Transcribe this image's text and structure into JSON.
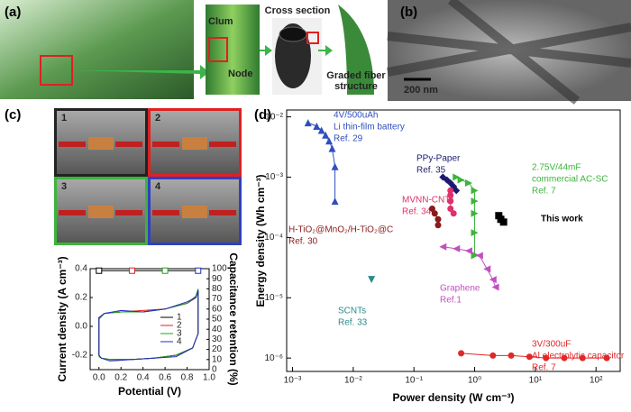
{
  "panels": {
    "a": {
      "label": "(a)",
      "clum": "Clum",
      "node": "Node",
      "cross": "Cross section",
      "graded": [
        "Graded fiber",
        "structure"
      ]
    },
    "b": {
      "label": "(b)",
      "scale": "200 nm"
    },
    "c": {
      "label": "(c)",
      "photos": [
        "1",
        "2",
        "3",
        "4"
      ]
    },
    "d": {
      "label": "(d)"
    }
  },
  "chart_data": [
    {
      "type": "line",
      "xlabel": "Potential (V)",
      "ylabel": "Current density (A cm⁻³)",
      "y2label": "Capacitance retention (%)",
      "xlim": [
        -0.08,
        1.0
      ],
      "xticks": [
        {
          "value": 0,
          "label": "0.0"
        },
        0.2,
        0.4,
        0.6,
        0.8,
        {
          "value": 1,
          "label": "1.0"
        }
      ],
      "ylim": [
        -0.3,
        0.4
      ],
      "yticks": [
        -0.2,
        {
          "value": 0,
          "label": "0.0"
        },
        0.2,
        0.4
      ],
      "y2lim": [
        0,
        100
      ],
      "y2ticks": [
        0,
        10,
        20,
        30,
        40,
        50,
        60,
        70,
        80,
        90,
        100
      ],
      "x": [
        0,
        0,
        0.05,
        0.2,
        0.4,
        0.6,
        0.8,
        0.88,
        0.9,
        0.9,
        0.85,
        0.7,
        0.5,
        0.3,
        0.1,
        0.02,
        0
      ],
      "series": [
        {
          "name": "1",
          "color": "#000000",
          "values": [
            -0.2,
            0.06,
            0.09,
            0.1,
            0.1,
            0.12,
            0.16,
            0.2,
            0.25,
            -0.05,
            -0.15,
            -0.2,
            -0.22,
            -0.23,
            -0.23,
            -0.22,
            -0.2
          ]
        },
        {
          "name": "2",
          "color": "#e02020",
          "values": [
            -0.2,
            0.06,
            0.09,
            0.1,
            0.11,
            0.12,
            0.16,
            0.2,
            0.25,
            -0.05,
            -0.15,
            -0.2,
            -0.22,
            -0.23,
            -0.23,
            -0.22,
            -0.2
          ]
        },
        {
          "name": "3",
          "color": "#20a020",
          "values": [
            -0.21,
            0.05,
            0.09,
            0.1,
            0.1,
            0.12,
            0.16,
            0.21,
            0.26,
            -0.05,
            -0.15,
            -0.2,
            -0.22,
            -0.23,
            -0.23,
            -0.22,
            -0.21
          ]
        },
        {
          "name": "4",
          "color": "#2030c0",
          "values": [
            -0.2,
            0.06,
            0.09,
            0.11,
            0.1,
            0.12,
            0.17,
            0.2,
            0.25,
            -0.05,
            -0.15,
            -0.21,
            -0.22,
            -0.23,
            -0.24,
            -0.22,
            -0.2
          ]
        }
      ],
      "retention": {
        "axis": "y2",
        "x": [
          0,
          0.3,
          0.6,
          0.9
        ],
        "values": [
          98,
          98,
          98,
          98
        ],
        "colors": [
          "#000000",
          "#e02020",
          "#20a020",
          "#2030c0"
        ]
      }
    },
    {
      "type": "scatter",
      "log_x": true,
      "log_y": true,
      "xlabel": "Power density (W cm⁻³)",
      "ylabel": "Energy density (Wh cm⁻³)",
      "xlim": [
        0.0008,
        250
      ],
      "xticks": [
        {
          "value": 0.001,
          "label": "10⁻³"
        },
        {
          "value": 0.01,
          "label": "10⁻²"
        },
        {
          "value": 0.1,
          "label": "10⁻¹"
        },
        {
          "value": 1,
          "label": "10⁰"
        },
        {
          "value": 10,
          "label": "10¹"
        },
        {
          "value": 100,
          "label": "10²"
        }
      ],
      "ylim": [
        6e-07,
        0.013
      ],
      "yticks": [
        {
          "value": 1e-06,
          "label": "10⁻⁶"
        },
        {
          "value": 1e-05,
          "label": "10⁻⁵"
        },
        {
          "value": 0.0001,
          "label": "10⁻⁴"
        },
        {
          "value": 0.001,
          "label": "10⁻³"
        },
        {
          "value": 0.01,
          "label": "10⁻²"
        }
      ],
      "series": [
        {
          "name": "Li thin-film battery",
          "spec": "4V/500uAh",
          "ref": "Ref. 29",
          "color": "#2f4fbf",
          "marker": "triangle",
          "x": [
            0.0018,
            0.0025,
            0.003,
            0.0035,
            0.004,
            0.0045,
            0.005,
            0.005
          ],
          "values": [
            0.008,
            0.007,
            0.006,
            0.005,
            0.004,
            0.003,
            0.0015,
            0.0004
          ]
        },
        {
          "name": "PPy-Paper",
          "ref": "Ref. 35",
          "color": "#1a1a6e",
          "marker": "diamond",
          "x": [
            0.3,
            0.35,
            0.4,
            0.45,
            0.5
          ],
          "values": [
            0.001,
            0.0009,
            0.0008,
            0.0007,
            0.0006
          ]
        },
        {
          "name": "commercial AC-SC",
          "spec": "2.75V/44mF",
          "ref": "Ref. 7",
          "color": "#3cb43c",
          "marker": "right",
          "x": [
            0.5,
            0.6,
            0.8,
            1,
            1,
            1,
            1,
            1
          ],
          "values": [
            0.001,
            0.0009,
            0.0008,
            0.0006,
            0.0004,
            0.00025,
            0.00012,
            5e-05
          ]
        },
        {
          "name": "MVNN-CNTs",
          "ref": "Ref. 34",
          "color": "#e0306a",
          "marker": "circle",
          "x": [
            0.4,
            0.4,
            0.4,
            0.4,
            0.45
          ],
          "values": [
            0.0006,
            0.0005,
            0.0004,
            0.0003,
            0.00025
          ]
        },
        {
          "name": "H-TiO₂@MnO₂/H-TiO₂@C",
          "ref": "Ref. 30",
          "color": "#8b1a1a",
          "marker": "circle",
          "x": [
            0.2,
            0.22,
            0.25,
            0.25
          ],
          "values": [
            0.0003,
            0.00025,
            0.0002,
            0.00016
          ]
        },
        {
          "name": "This work",
          "color": "#000000",
          "marker": "square",
          "x": [
            2.5,
            2.7,
            3
          ],
          "values": [
            0.00023,
            0.0002,
            0.00018
          ]
        },
        {
          "name": "Graphene",
          "ref": "Ref.1",
          "color": "#c050c0",
          "marker": "left",
          "x": [
            0.3,
            0.5,
            0.8,
            1.2,
            1.6,
            2,
            2.2
          ],
          "values": [
            7e-05,
            6.5e-05,
            6e-05,
            5e-05,
            3e-05,
            2e-05,
            1.5e-05
          ]
        },
        {
          "name": "SCNTs",
          "ref": "Ref. 33",
          "color": "#2a8a8a",
          "marker": "down",
          "x": [
            0.02
          ],
          "values": [
            2e-05
          ]
        },
        {
          "name": "Al electrolytic capacitor",
          "spec": "3V/300uF",
          "ref": "Ref. 7",
          "color": "#e02828",
          "marker": "circle",
          "x": [
            0.6,
            2,
            4,
            8,
            15,
            30,
            60,
            150
          ],
          "values": [
            1.2e-06,
            1.1e-06,
            1.1e-06,
            1.05e-06,
            1e-06,
            1e-06,
            1e-06,
            1e-06
          ]
        }
      ]
    }
  ]
}
